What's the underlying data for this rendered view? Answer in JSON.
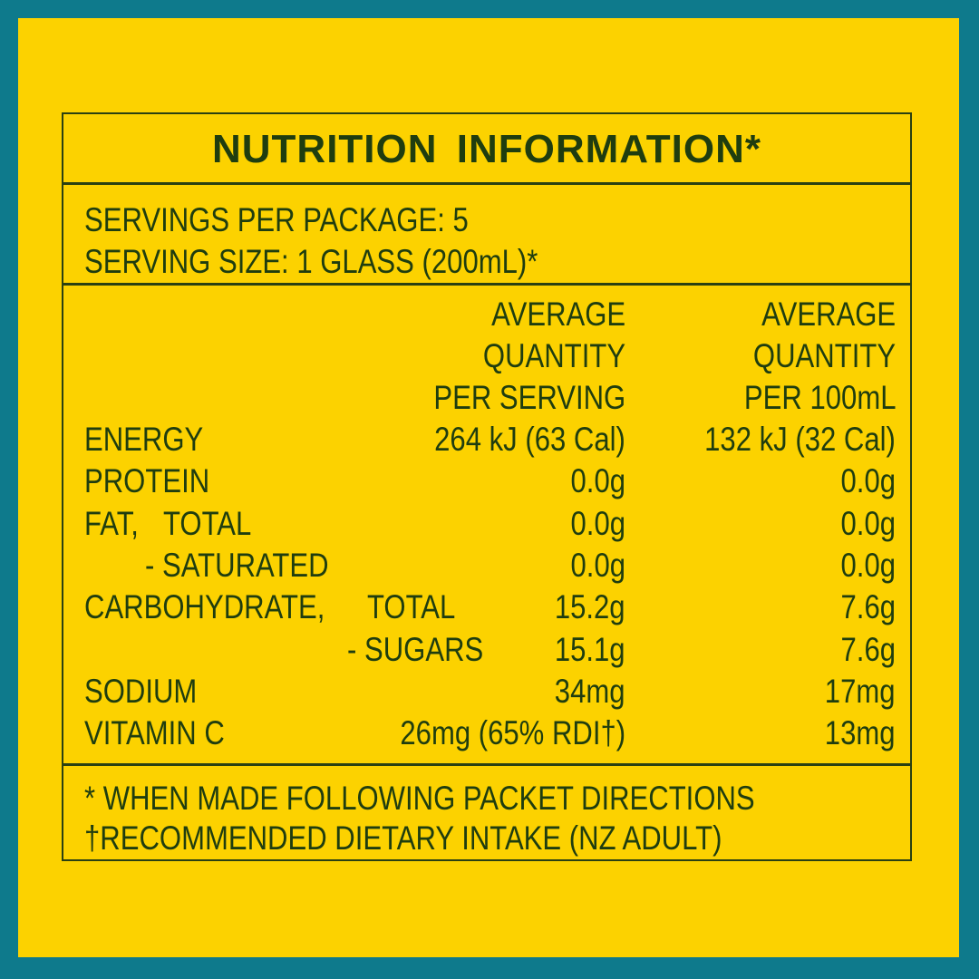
{
  "colors": {
    "border": "#0e7a8c",
    "background": "#fcd200",
    "text": "#1f3d0f"
  },
  "title": "NUTRITION  INFORMATION*",
  "servings_per_package": "SERVINGS PER PACKAGE: 5",
  "serving_size": "SERVING SIZE: 1 GLASS (200mL)*",
  "headers": {
    "per_serving": [
      "AVERAGE",
      "QUANTITY",
      "PER SERVING"
    ],
    "per_100ml": [
      "AVERAGE",
      "QUANTITY",
      "PER 100mL"
    ]
  },
  "rows": [
    {
      "label": "ENERGY",
      "sub": "",
      "per_serving": "264 kJ (63 Cal)",
      "per_100ml": "132 kJ (32 Cal)"
    },
    {
      "label": "PROTEIN",
      "sub": "",
      "per_serving": "0.0g",
      "per_100ml": "0.0g"
    },
    {
      "label": "FAT,",
      "sub": "TOTAL",
      "per_serving": "0.0g",
      "per_100ml": "0.0g"
    },
    {
      "label": "",
      "sub": "- SATURATED",
      "per_serving": "0.0g",
      "per_100ml": "0.0g"
    },
    {
      "label": "CARBOHYDRATE,",
      "sub": "TOTAL",
      "per_serving": "15.2g",
      "per_100ml": "7.6g"
    },
    {
      "label": "",
      "sub": "- SUGARS",
      "per_serving": "15.1g",
      "per_100ml": "7.6g"
    },
    {
      "label": "SODIUM",
      "sub": "",
      "per_serving": "34mg",
      "per_100ml": "17mg"
    },
    {
      "label": "VITAMIN C",
      "sub": "",
      "per_serving": "26mg (65% RDI†)",
      "per_100ml": "13mg"
    }
  ],
  "footnotes": [
    "* WHEN MADE FOLLOWING PACKET DIRECTIONS",
    "†RECOMMENDED DIETARY INTAKE (NZ ADULT)"
  ]
}
